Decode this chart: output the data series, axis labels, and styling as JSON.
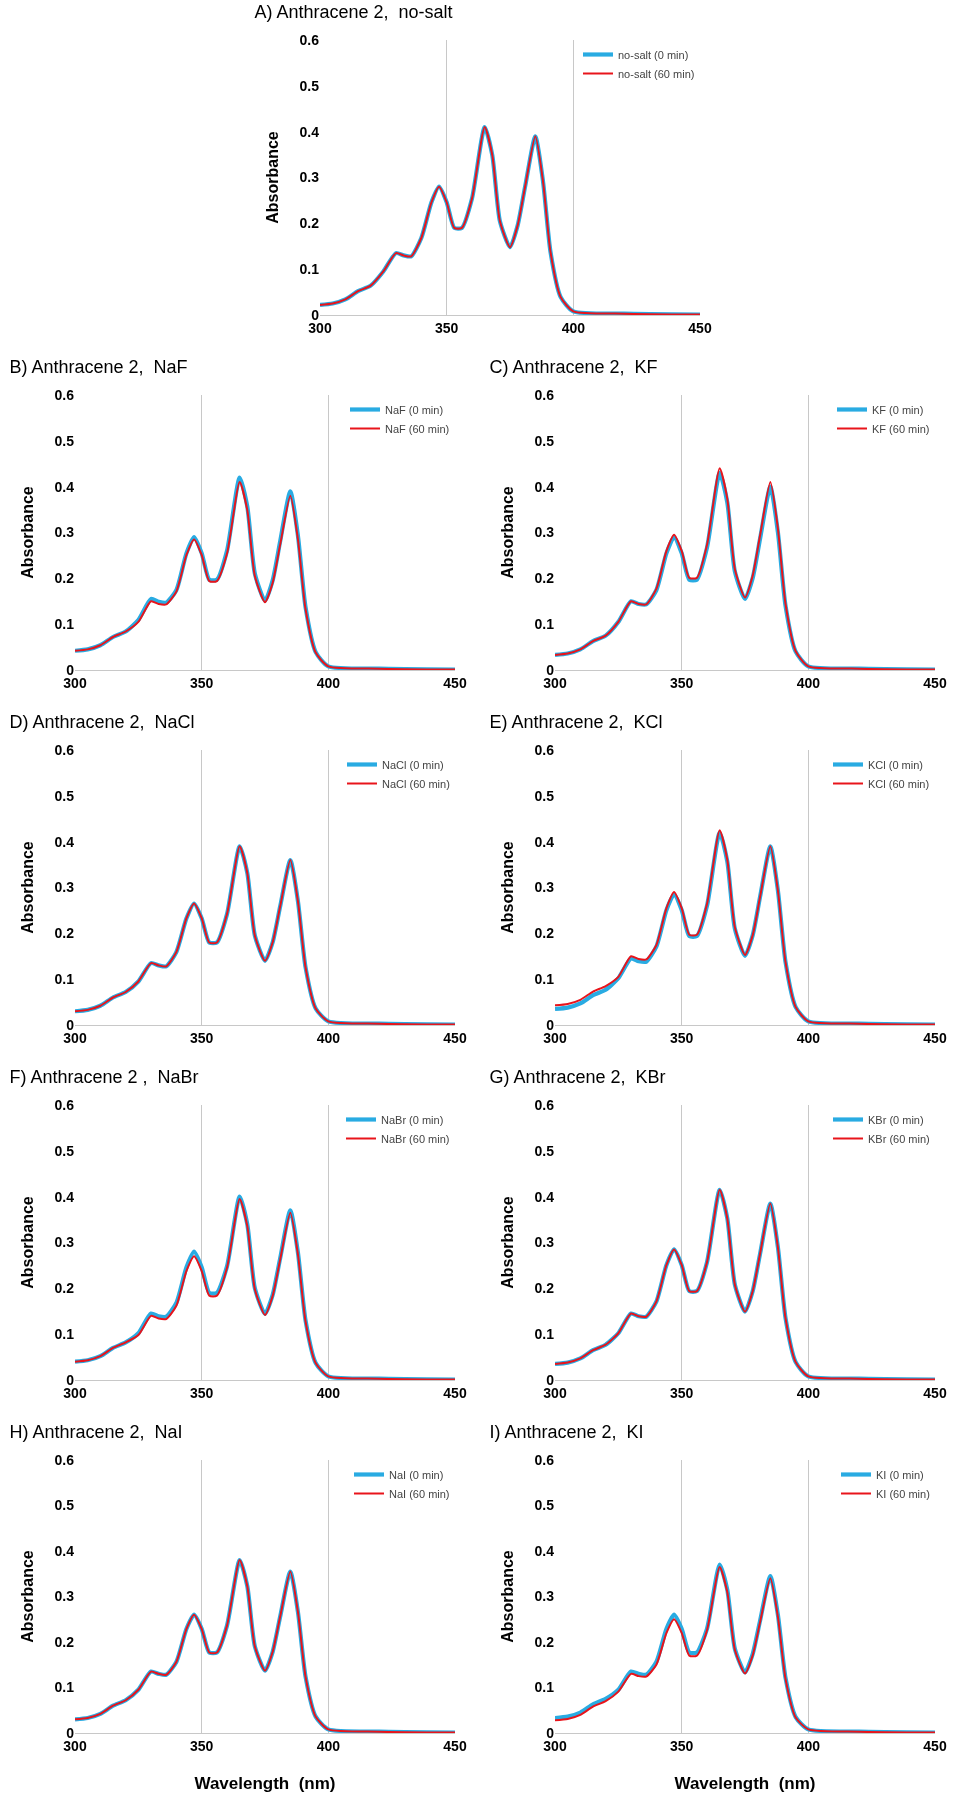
{
  "chart_data": [
    {
      "type": "line",
      "title": "A) Anthracene 2,  no-salt",
      "ylabel": "Absorbance",
      "x": [
        300,
        305,
        310,
        315,
        320,
        325,
        330,
        333,
        336,
        340,
        344,
        347,
        350,
        353,
        356,
        360,
        365,
        368,
        371,
        375,
        378,
        381,
        385,
        388,
        391,
        395,
        400,
        420,
        450
      ],
      "xlim": [
        300,
        450
      ],
      "xticks": [
        300,
        350,
        400,
        450
      ],
      "ylim": [
        0,
        0.6
      ],
      "yticks": [
        0,
        0.1,
        0.2,
        0.3,
        0.4,
        0.5,
        0.6
      ],
      "grid": "x",
      "legend": "top right",
      "tick_labels": "xy",
      "series": [
        {
          "name": "no-salt (0 min)",
          "color": "#29abe2",
          "values": [
            0.022,
            0.025,
            0.034,
            0.052,
            0.064,
            0.095,
            0.135,
            0.13,
            0.128,
            0.168,
            0.246,
            0.28,
            0.246,
            0.19,
            0.19,
            0.254,
            0.41,
            0.349,
            0.205,
            0.148,
            0.195,
            0.281,
            0.39,
            0.293,
            0.137,
            0.039,
            0.008,
            0.003,
            0.001
          ]
        },
        {
          "name": "no-salt (60 min)",
          "color": "#e8141b",
          "values": [
            0.022,
            0.025,
            0.034,
            0.052,
            0.064,
            0.095,
            0.135,
            0.13,
            0.128,
            0.168,
            0.246,
            0.28,
            0.246,
            0.19,
            0.19,
            0.254,
            0.41,
            0.349,
            0.205,
            0.148,
            0.195,
            0.281,
            0.39,
            0.293,
            0.137,
            0.039,
            0.008,
            0.003,
            0.001
          ]
        }
      ]
    },
    {
      "type": "line",
      "title": "B) Anthracene 2,  NaF",
      "ylabel": "Absorbance",
      "x": [
        300,
        305,
        310,
        315,
        320,
        325,
        330,
        333,
        336,
        340,
        344,
        347,
        350,
        353,
        356,
        360,
        365,
        368,
        371,
        375,
        378,
        381,
        385,
        388,
        391,
        395,
        400,
        420,
        450
      ],
      "xlim": [
        300,
        450
      ],
      "xticks": [
        300,
        350,
        400,
        450
      ],
      "ylim": [
        0,
        0.6
      ],
      "yticks": [
        0,
        0.1,
        0.2,
        0.3,
        0.4,
        0.5,
        0.6
      ],
      "grid": "x",
      "legend": "top right",
      "series": [
        {
          "name": "NaF (0 min)",
          "color": "#29abe2",
          "values": [
            0.042,
            0.045,
            0.054,
            0.072,
            0.084,
            0.109,
            0.155,
            0.149,
            0.147,
            0.174,
            0.255,
            0.29,
            0.255,
            0.197,
            0.197,
            0.26,
            0.42,
            0.357,
            0.21,
            0.151,
            0.195,
            0.281,
            0.39,
            0.293,
            0.137,
            0.039,
            0.008,
            0.003,
            0.001
          ]
        },
        {
          "name": "NaF (60 min)",
          "color": "#e8141b",
          "values": [
            0.042,
            0.045,
            0.054,
            0.072,
            0.084,
            0.105,
            0.15,
            0.144,
            0.143,
            0.171,
            0.251,
            0.285,
            0.251,
            0.194,
            0.194,
            0.254,
            0.41,
            0.349,
            0.205,
            0.148,
            0.19,
            0.274,
            0.38,
            0.285,
            0.133,
            0.038,
            0.008,
            0.003,
            0.001
          ]
        }
      ]
    },
    {
      "type": "line",
      "title": "C) Anthracene 2,  KF",
      "ylabel": "Absorbance",
      "x": [
        300,
        305,
        310,
        315,
        320,
        325,
        330,
        333,
        336,
        340,
        344,
        347,
        350,
        353,
        356,
        360,
        365,
        368,
        371,
        375,
        378,
        381,
        385,
        388,
        391,
        395,
        400,
        420,
        450
      ],
      "xlim": [
        300,
        450
      ],
      "xticks": [
        300,
        350,
        400,
        450
      ],
      "ylim": [
        0,
        0.6
      ],
      "yticks": [
        0,
        0.1,
        0.2,
        0.3,
        0.4,
        0.5,
        0.6
      ],
      "grid": "x",
      "legend": "top right",
      "series": [
        {
          "name": "KF (0 min)",
          "color": "#29abe2",
          "values": [
            0.033,
            0.036,
            0.045,
            0.063,
            0.075,
            0.105,
            0.15,
            0.144,
            0.143,
            0.174,
            0.255,
            0.29,
            0.255,
            0.197,
            0.197,
            0.267,
            0.43,
            0.366,
            0.215,
            0.155,
            0.2,
            0.288,
            0.4,
            0.3,
            0.14,
            0.04,
            0.008,
            0.003,
            0.001
          ]
        },
        {
          "name": "KF (60 min)",
          "color": "#e8141b",
          "values": [
            0.033,
            0.036,
            0.045,
            0.063,
            0.075,
            0.105,
            0.15,
            0.144,
            0.143,
            0.177,
            0.26,
            0.295,
            0.26,
            0.201,
            0.201,
            0.273,
            0.44,
            0.374,
            0.22,
            0.158,
            0.205,
            0.295,
            0.41,
            0.308,
            0.144,
            0.041,
            0.008,
            0.003,
            0.001
          ]
        }
      ]
    },
    {
      "type": "line",
      "title": "D) Anthracene 2,  NaCl",
      "ylabel": "Absorbance",
      "x": [
        300,
        305,
        310,
        315,
        320,
        325,
        330,
        333,
        336,
        340,
        344,
        347,
        350,
        353,
        356,
        360,
        365,
        368,
        371,
        375,
        378,
        381,
        385,
        388,
        391,
        395,
        400,
        420,
        450
      ],
      "xlim": [
        300,
        450
      ],
      "xticks": [
        300,
        350,
        400,
        450
      ],
      "ylim": [
        0,
        0.6
      ],
      "yticks": [
        0,
        0.1,
        0.2,
        0.3,
        0.4,
        0.5,
        0.6
      ],
      "grid": "x",
      "legend": "top right",
      "series": [
        {
          "name": "NaCl (0 min)",
          "color": "#29abe2",
          "values": [
            0.03,
            0.033,
            0.042,
            0.06,
            0.072,
            0.095,
            0.135,
            0.13,
            0.128,
            0.159,
            0.233,
            0.265,
            0.233,
            0.18,
            0.18,
            0.242,
            0.39,
            0.332,
            0.195,
            0.14,
            0.18,
            0.259,
            0.36,
            0.27,
            0.126,
            0.036,
            0.008,
            0.003,
            0.001
          ]
        },
        {
          "name": "NaCl (60 min)",
          "color": "#e8141b",
          "values": [
            0.03,
            0.033,
            0.042,
            0.06,
            0.072,
            0.095,
            0.135,
            0.13,
            0.128,
            0.159,
            0.233,
            0.265,
            0.233,
            0.18,
            0.18,
            0.242,
            0.39,
            0.332,
            0.195,
            0.14,
            0.18,
            0.259,
            0.36,
            0.27,
            0.126,
            0.036,
            0.008,
            0.003,
            0.001
          ]
        }
      ]
    },
    {
      "type": "line",
      "title": "E) Anthracene 2,  KCl",
      "ylabel": "Absorbance",
      "x": [
        300,
        305,
        310,
        315,
        320,
        325,
        330,
        333,
        336,
        340,
        344,
        347,
        350,
        353,
        356,
        360,
        365,
        368,
        371,
        375,
        378,
        381,
        385,
        388,
        391,
        395,
        400,
        420,
        450
      ],
      "xlim": [
        300,
        450
      ],
      "xticks": [
        300,
        350,
        400,
        450
      ],
      "ylim": [
        0,
        0.6
      ],
      "yticks": [
        0,
        0.1,
        0.2,
        0.3,
        0.4,
        0.5,
        0.6
      ],
      "grid": "x",
      "legend": "top right",
      "series": [
        {
          "name": "KCl (0 min)",
          "color": "#29abe2",
          "values": [
            0.035,
            0.038,
            0.047,
            0.065,
            0.077,
            0.102,
            0.145,
            0.139,
            0.138,
            0.171,
            0.251,
            0.285,
            0.251,
            0.194,
            0.194,
            0.26,
            0.42,
            0.357,
            0.21,
            0.151,
            0.195,
            0.281,
            0.39,
            0.293,
            0.137,
            0.039,
            0.008,
            0.003,
            0.001
          ]
        },
        {
          "name": "KCl (60 min)",
          "color": "#e8141b",
          "values": [
            0.043,
            0.046,
            0.055,
            0.073,
            0.085,
            0.105,
            0.15,
            0.144,
            0.143,
            0.174,
            0.255,
            0.29,
            0.255,
            0.197,
            0.197,
            0.264,
            0.425,
            0.361,
            0.213,
            0.153,
            0.195,
            0.281,
            0.39,
            0.293,
            0.137,
            0.039,
            0.008,
            0.003,
            0.001
          ]
        }
      ]
    },
    {
      "type": "line",
      "title": "F) Anthracene 2 ,  NaBr",
      "ylabel": "Absorbance",
      "x": [
        300,
        305,
        310,
        315,
        320,
        325,
        330,
        333,
        336,
        340,
        344,
        347,
        350,
        353,
        356,
        360,
        365,
        368,
        371,
        375,
        378,
        381,
        385,
        388,
        391,
        395,
        400,
        420,
        450
      ],
      "xlim": [
        300,
        450
      ],
      "xticks": [
        300,
        350,
        400,
        450
      ],
      "ylim": [
        0,
        0.6
      ],
      "yticks": [
        0,
        0.1,
        0.2,
        0.3,
        0.4,
        0.5,
        0.6
      ],
      "grid": "x",
      "legend": "top right",
      "series": [
        {
          "name": "NaBr (0 min)",
          "color": "#29abe2",
          "values": [
            0.04,
            0.043,
            0.052,
            0.07,
            0.082,
            0.102,
            0.145,
            0.139,
            0.138,
            0.168,
            0.246,
            0.28,
            0.246,
            0.19,
            0.19,
            0.248,
            0.4,
            0.34,
            0.2,
            0.144,
            0.185,
            0.266,
            0.37,
            0.278,
            0.13,
            0.037,
            0.008,
            0.003,
            0.001
          ]
        },
        {
          "name": "NaBr (60 min)",
          "color": "#e8141b",
          "values": [
            0.04,
            0.043,
            0.052,
            0.07,
            0.082,
            0.098,
            0.14,
            0.134,
            0.133,
            0.162,
            0.238,
            0.27,
            0.238,
            0.184,
            0.184,
            0.245,
            0.395,
            0.336,
            0.198,
            0.142,
            0.183,
            0.263,
            0.365,
            0.274,
            0.128,
            0.037,
            0.008,
            0.003,
            0.001
          ]
        }
      ]
    },
    {
      "type": "line",
      "title": "G) Anthracene 2,  KBr",
      "ylabel": "Absorbance",
      "x": [
        300,
        305,
        310,
        315,
        320,
        325,
        330,
        333,
        336,
        340,
        344,
        347,
        350,
        353,
        356,
        360,
        365,
        368,
        371,
        375,
        378,
        381,
        385,
        388,
        391,
        395,
        400,
        420,
        450
      ],
      "xlim": [
        300,
        450
      ],
      "xticks": [
        300,
        350,
        400,
        450
      ],
      "ylim": [
        0,
        0.6
      ],
      "yticks": [
        0,
        0.1,
        0.2,
        0.3,
        0.4,
        0.5,
        0.6
      ],
      "grid": "x",
      "legend": "top right",
      "series": [
        {
          "name": "KBr (0 min)",
          "color": "#29abe2",
          "values": [
            0.035,
            0.038,
            0.047,
            0.065,
            0.077,
            0.102,
            0.145,
            0.139,
            0.138,
            0.171,
            0.251,
            0.285,
            0.251,
            0.194,
            0.194,
            0.257,
            0.415,
            0.353,
            0.208,
            0.149,
            0.193,
            0.277,
            0.385,
            0.289,
            0.135,
            0.039,
            0.008,
            0.003,
            0.001
          ]
        },
        {
          "name": "KBr (60 min)",
          "color": "#e8141b",
          "values": [
            0.035,
            0.038,
            0.047,
            0.065,
            0.077,
            0.102,
            0.145,
            0.139,
            0.138,
            0.171,
            0.251,
            0.285,
            0.251,
            0.194,
            0.194,
            0.257,
            0.415,
            0.353,
            0.208,
            0.149,
            0.193,
            0.277,
            0.385,
            0.289,
            0.135,
            0.039,
            0.008,
            0.003,
            0.001
          ]
        }
      ]
    },
    {
      "type": "line",
      "title": "H) Anthracene 2,  NaI",
      "xlabel": "Wavelength  (nm)",
      "ylabel": "Absorbance",
      "x": [
        300,
        305,
        310,
        315,
        320,
        325,
        330,
        333,
        336,
        340,
        344,
        347,
        350,
        353,
        356,
        360,
        365,
        368,
        371,
        375,
        378,
        381,
        385,
        388,
        391,
        395,
        400,
        420,
        450
      ],
      "xlim": [
        300,
        450
      ],
      "xticks": [
        300,
        350,
        400,
        450
      ],
      "ylim": [
        0,
        0.6
      ],
      "yticks": [
        0,
        0.1,
        0.2,
        0.3,
        0.4,
        0.5,
        0.6
      ],
      "grid": "x",
      "legend": "top right",
      "series": [
        {
          "name": "NaI (0 min)",
          "color": "#29abe2",
          "values": [
            0.03,
            0.033,
            0.042,
            0.06,
            0.072,
            0.095,
            0.135,
            0.13,
            0.128,
            0.156,
            0.229,
            0.26,
            0.229,
            0.177,
            0.177,
            0.236,
            0.38,
            0.323,
            0.19,
            0.137,
            0.178,
            0.256,
            0.355,
            0.266,
            0.124,
            0.036,
            0.008,
            0.003,
            0.001
          ]
        },
        {
          "name": "NaI (60 min)",
          "color": "#e8141b",
          "values": [
            0.03,
            0.033,
            0.042,
            0.06,
            0.072,
            0.095,
            0.135,
            0.13,
            0.128,
            0.156,
            0.229,
            0.26,
            0.229,
            0.177,
            0.177,
            0.236,
            0.38,
            0.323,
            0.19,
            0.137,
            0.178,
            0.256,
            0.355,
            0.266,
            0.124,
            0.036,
            0.008,
            0.003,
            0.001
          ]
        }
      ]
    },
    {
      "type": "line",
      "title": "I) Anthracene 2,  KI",
      "xlabel": "Wavelength  (nm)",
      "ylabel": "Absorbance",
      "x": [
        300,
        305,
        310,
        315,
        320,
        325,
        330,
        333,
        336,
        340,
        344,
        347,
        350,
        353,
        356,
        360,
        365,
        368,
        371,
        375,
        378,
        381,
        385,
        388,
        391,
        395,
        400,
        420,
        450
      ],
      "xlim": [
        300,
        450
      ],
      "xticks": [
        300,
        350,
        400,
        450
      ],
      "ylim": [
        0,
        0.6
      ],
      "yticks": [
        0,
        0.1,
        0.2,
        0.3,
        0.4,
        0.5,
        0.6
      ],
      "grid": "x",
      "legend": "top right",
      "series": [
        {
          "name": "KI (0 min)",
          "color": "#29abe2",
          "values": [
            0.033,
            0.036,
            0.045,
            0.063,
            0.075,
            0.095,
            0.135,
            0.13,
            0.128,
            0.156,
            0.229,
            0.26,
            0.229,
            0.177,
            0.177,
            0.229,
            0.37,
            0.315,
            0.185,
            0.133,
            0.173,
            0.248,
            0.345,
            0.259,
            0.121,
            0.035,
            0.008,
            0.003,
            0.001
          ]
        },
        {
          "name": "KI (60 min)",
          "color": "#e8141b",
          "values": [
            0.028,
            0.031,
            0.04,
            0.058,
            0.07,
            0.091,
            0.13,
            0.125,
            0.124,
            0.15,
            0.22,
            0.25,
            0.22,
            0.17,
            0.17,
            0.226,
            0.365,
            0.31,
            0.183,
            0.131,
            0.17,
            0.245,
            0.34,
            0.255,
            0.119,
            0.034,
            0.008,
            0.003,
            0.001
          ]
        }
      ]
    }
  ]
}
